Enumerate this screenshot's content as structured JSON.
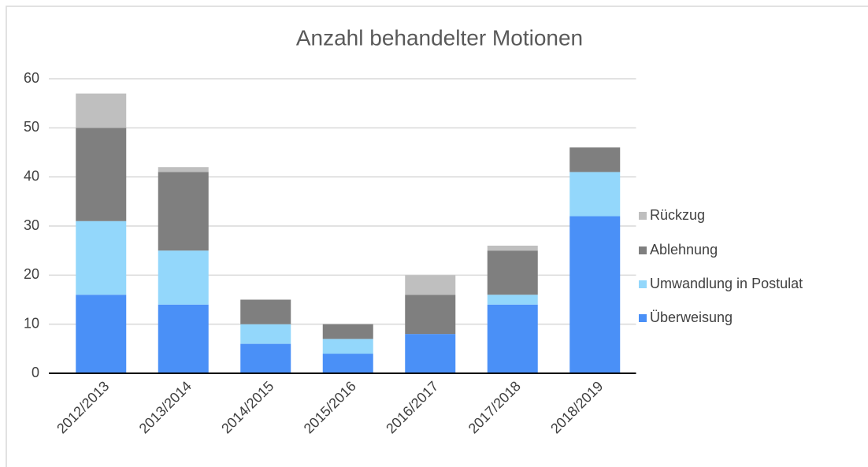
{
  "chart_data": {
    "type": "stacked_bar",
    "title": "Anzahl behandelter Motionen",
    "categories": [
      "2012/2013",
      "2013/2014",
      "2014/2015",
      "2015/2016",
      "2016/2017",
      "2017/2018",
      "2018/2019"
    ],
    "series": [
      {
        "name": "Überweisung",
        "color": "#4a90f7",
        "values": [
          16,
          14,
          6,
          4,
          8,
          14,
          32
        ]
      },
      {
        "name": "Umwandlung in Postulat",
        "color": "#93d7fb",
        "values": [
          15,
          11,
          4,
          3,
          0,
          2,
          9
        ]
      },
      {
        "name": "Ablehnung",
        "color": "#7f7f7f",
        "values": [
          19,
          16,
          5,
          3,
          8,
          9,
          5
        ]
      },
      {
        "name": "Rückzug",
        "color": "#bfbfbf",
        "values": [
          7,
          1,
          0,
          0,
          4,
          1,
          0
        ]
      }
    ],
    "ylim": [
      0,
      60
    ],
    "yticks": [
      0,
      10,
      20,
      30,
      40,
      50,
      60
    ],
    "grid": true,
    "legend": "right"
  }
}
